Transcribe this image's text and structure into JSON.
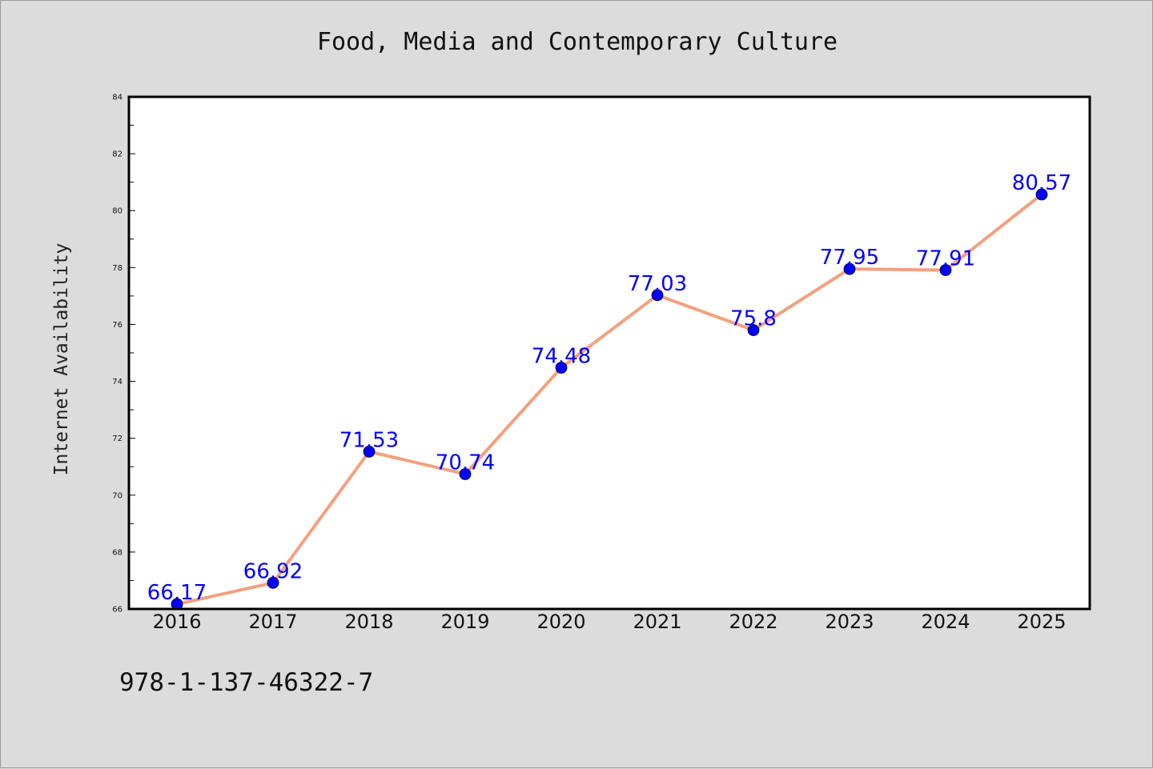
{
  "figure": {
    "title": "Food, Media and Contemporary Culture",
    "caption": "978-1-137-46322-7"
  },
  "chart_data": {
    "type": "line",
    "title": "Food, Media and Contemporary Culture",
    "xlabel": "",
    "ylabel": "Internet Availability",
    "categories": [
      "2016",
      "2017",
      "2018",
      "2019",
      "2020",
      "2021",
      "2022",
      "2023",
      "2024",
      "2025"
    ],
    "series": [
      {
        "values": [
          66.17,
          66.92,
          71.53,
          70.74,
          74.48,
          77.03,
          75.8,
          77.95,
          77.91,
          80.57
        ],
        "line_color": "#f4a07e",
        "marker_color": "#0000ff"
      }
    ],
    "data_labels": [
      "66.17",
      "66.92",
      "71.53",
      "70.74",
      "74.48",
      "77.03",
      "75.8",
      "77.95",
      "77.91",
      "80.57"
    ],
    "ylim": [
      66,
      84
    ],
    "y_ticks": [
      66,
      68,
      70,
      72,
      74,
      76,
      78,
      80,
      82,
      84
    ],
    "grid": false,
    "legend": "none"
  }
}
